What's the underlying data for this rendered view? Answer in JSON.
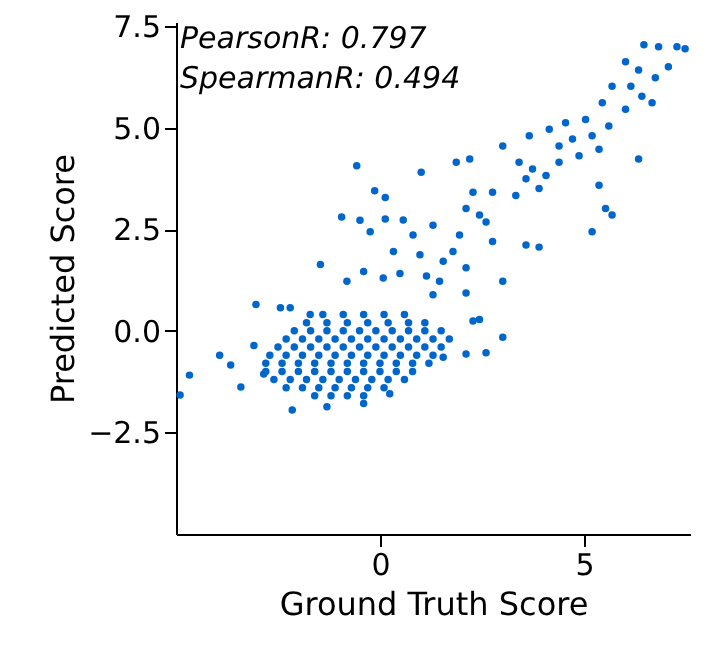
{
  "chart_data": {
    "type": "scatter",
    "xlabel": "Ground Truth Score",
    "ylabel": "Predicted Score",
    "annotations": [
      "PearsonR: 0.797",
      "SpearmanR: 0.494"
    ],
    "xlim": [
      -5.0,
      7.6
    ],
    "ylim": [
      -5.0,
      7.6
    ],
    "xticks": [
      0,
      5
    ],
    "yticks": [
      {
        "value": -2.5,
        "label": "−2.5"
      },
      {
        "value": 0,
        "label": "0.0"
      },
      {
        "value": 2.5,
        "label": "2.5"
      },
      {
        "value": 5,
        "label": "5.0"
      },
      {
        "value": 7.5,
        "label": "7.5"
      }
    ],
    "grid": false,
    "series": [
      {
        "color": "#0066cc",
        "x": [
          6.47,
          6.83,
          7.28,
          7.48,
          6.02,
          7.07,
          6.34,
          6.75,
          5.69,
          6.15,
          6.42,
          6.67,
          5.45,
          6.02,
          5.04,
          4.55,
          5.61,
          4.15,
          5.2,
          4.72,
          3.66,
          3.01,
          4.39,
          3.41,
          3.74,
          4.07,
          3.58,
          4.39,
          4.88,
          5.37,
          3.9,
          3.33,
          5.37,
          5.53,
          5.69,
          5.2,
          6.34,
          3.58,
          3.9,
          2.6,
          2.11,
          2.28,
          1.87,
          2.2,
          2.76,
          2.44,
          1.95,
          1.79,
          2.76,
          1.55,
          2.11,
          3.01,
          -0.57,
          1.01,
          -0.13,
          0.13,
          -0.94,
          -0.49,
          0.13,
          0.57,
          1.3,
          -0.24,
          0.81,
          0.33,
          0.98,
          -1.46,
          -0.4,
          0.49,
          0.08,
          1.14,
          1.46,
          -0.81,
          -3.04,
          -2.2,
          -1.71,
          1.3,
          -4.67,
          -3.93,
          -3.66,
          -3.41,
          -3.09,
          -2.15,
          -1.3,
          -0.4,
          0.24,
          2.11,
          2.6,
          3.01,
          2.28,
          2.44,
          2.11,
          1.55,
          -4.9,
          -2.85,
          -2.44,
          -1.4,
          -0.9,
          -0.4,
          0.1,
          0.6,
          -1.8,
          -1.3,
          -0.8,
          -0.3,
          0.2,
          0.7,
          1.1,
          -2.1,
          -1.7,
          -1.3,
          -0.9,
          -0.5,
          -0.1,
          0.3,
          0.7,
          1.1,
          1.5,
          -2.3,
          -1.9,
          -1.5,
          -1.1,
          -0.7,
          -0.3,
          0.1,
          0.5,
          0.9,
          1.3,
          1.7,
          -2.5,
          -2.1,
          -1.7,
          -1.3,
          -0.9,
          -0.5,
          -0.1,
          0.3,
          0.7,
          1.1,
          1.5,
          -2.7,
          -2.3,
          -1.9,
          -1.5,
          -1.1,
          -0.7,
          -0.3,
          0.1,
          0.5,
          0.9,
          1.3,
          -2.8,
          -2.4,
          -2.0,
          -1.6,
          -1.2,
          -0.8,
          -0.4,
          0.0,
          0.4,
          0.8,
          1.2,
          -2.8,
          -2.4,
          -2.0,
          -1.6,
          -1.2,
          -0.8,
          -0.4,
          0.0,
          0.4,
          0.8,
          -2.6,
          -2.2,
          -1.8,
          -1.4,
          -1.0,
          -0.6,
          -0.2,
          0.2,
          0.6,
          -2.3,
          -1.9,
          -1.5,
          -1.1,
          -0.7,
          -0.3,
          0.1,
          -1.6,
          -1.2,
          -0.8,
          -0.4
        ],
        "values": [
          7.04,
          6.99,
          6.99,
          6.94,
          6.62,
          6.5,
          6.42,
          6.23,
          6.02,
          6.02,
          5.77,
          5.61,
          5.61,
          5.45,
          5.2,
          5.12,
          5.04,
          4.96,
          4.8,
          4.72,
          4.8,
          4.55,
          4.55,
          4.15,
          3.98,
          3.82,
          3.74,
          4.15,
          4.31,
          4.47,
          3.5,
          3.33,
          3.58,
          3.01,
          2.85,
          2.44,
          4.23,
          2.11,
          2.06,
          2.68,
          3.01,
          3.41,
          4.15,
          4.23,
          3.41,
          2.85,
          2.36,
          1.95,
          2.2,
          1.71,
          1.55,
          1.22,
          4.06,
          3.9,
          3.45,
          3.28,
          2.8,
          2.72,
          2.75,
          2.73,
          2.6,
          2.44,
          2.36,
          1.95,
          1.87,
          1.63,
          1.46,
          1.41,
          1.3,
          1.35,
          1.22,
          1.22,
          0.65,
          0.57,
          0.4,
          0.89,
          -1.09,
          -0.6,
          -0.84,
          -1.38,
          -0.36,
          -1.95,
          -1.87,
          -1.79,
          -1.55,
          -0.57,
          -0.54,
          -0.16,
          0.24,
          0.28,
          0.93,
          -0.65,
          -1.58,
          -1.06,
          0.57,
          0.4,
          0.4,
          0.4,
          0.4,
          0.4,
          0.2,
          0.2,
          0.2,
          0.2,
          0.2,
          0.2,
          0.2,
          0.0,
          0.0,
          0.0,
          0.0,
          0.0,
          0.0,
          0.0,
          0.0,
          0.0,
          0.0,
          -0.2,
          -0.2,
          -0.2,
          -0.2,
          -0.2,
          -0.2,
          -0.2,
          -0.2,
          -0.2,
          -0.2,
          -0.2,
          -0.4,
          -0.4,
          -0.4,
          -0.4,
          -0.4,
          -0.4,
          -0.4,
          -0.4,
          -0.4,
          -0.4,
          -0.4,
          -0.6,
          -0.6,
          -0.6,
          -0.6,
          -0.6,
          -0.6,
          -0.6,
          -0.6,
          -0.6,
          -0.6,
          -0.6,
          -0.8,
          -0.8,
          -0.8,
          -0.8,
          -0.8,
          -0.8,
          -0.8,
          -0.8,
          -0.8,
          -0.8,
          -0.8,
          -1.0,
          -1.0,
          -1.0,
          -1.0,
          -1.0,
          -1.0,
          -1.0,
          -1.0,
          -1.0,
          -1.0,
          -1.2,
          -1.2,
          -1.2,
          -1.2,
          -1.2,
          -1.2,
          -1.2,
          -1.2,
          -1.2,
          -1.4,
          -1.4,
          -1.4,
          -1.4,
          -1.4,
          -1.4,
          -1.4,
          -1.6,
          -1.6,
          -1.6,
          -1.6
        ]
      }
    ]
  }
}
